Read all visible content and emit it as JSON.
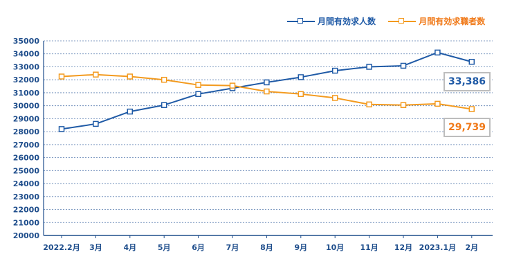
{
  "chart_data": {
    "type": "line",
    "categories": [
      "2022.2月",
      "3月",
      "4月",
      "5月",
      "6月",
      "7月",
      "8月",
      "9月",
      "10月",
      "11月",
      "12月",
      "2023.1月",
      "2月"
    ],
    "series": [
      {
        "name": "月間有効求人数",
        "color": "#1f5aa6",
        "values": [
          28200,
          28600,
          29550,
          30050,
          30900,
          31350,
          31800,
          32200,
          32700,
          33000,
          33080,
          34100,
          33386
        ]
      },
      {
        "name": "月間有効求職者数",
        "color": "#f39a1e",
        "values": [
          32250,
          32400,
          32250,
          32000,
          31600,
          31550,
          31100,
          30900,
          30600,
          30100,
          30050,
          30150,
          29739
        ]
      }
    ],
    "ylim": [
      20000,
      35000
    ],
    "yticks": [
      20000,
      21000,
      22000,
      23000,
      24000,
      25000,
      26000,
      27000,
      28000,
      29000,
      30000,
      31000,
      32000,
      33000,
      34000,
      35000
    ],
    "grid": true,
    "legend": "top-right",
    "callouts": [
      {
        "text": "33,386",
        "color": "#1f5aa6"
      },
      {
        "text": "29,739",
        "color": "#f07a1a"
      }
    ]
  },
  "legend": {
    "series1_label": "月間有効求人数",
    "series2_label": "月間有効求職者数"
  }
}
